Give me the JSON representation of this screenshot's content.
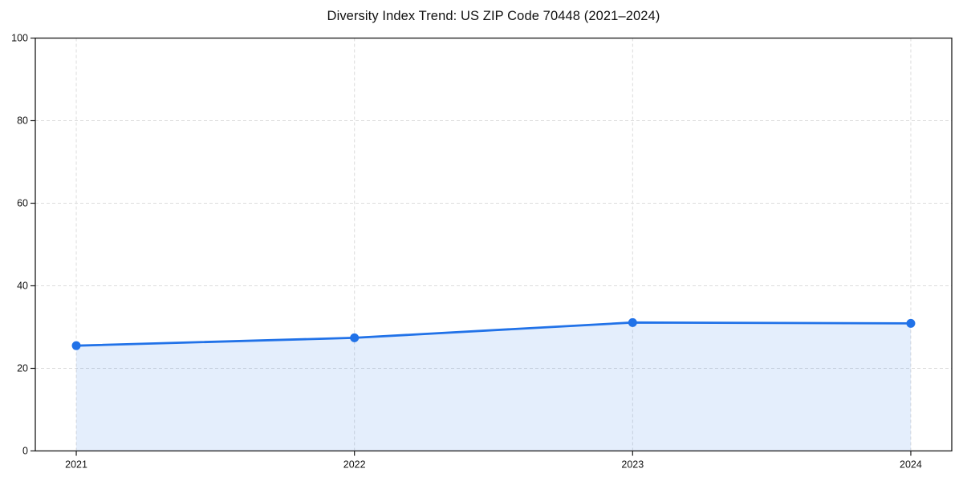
{
  "page": {
    "background": "#ffffff"
  },
  "chart_data": {
    "type": "area",
    "title": "Diversity Index Trend: US ZIP Code 70448 (2021–2024)",
    "x": [
      2021,
      2022,
      2023,
      2024
    ],
    "x_tick_labels": [
      "2021",
      "2022",
      "2023",
      "2024"
    ],
    "series": [
      {
        "name": "Diversity Index",
        "values": [
          25.5,
          27.4,
          31.1,
          30.9
        ]
      }
    ],
    "xlabel": "",
    "ylabel": "",
    "ylim": [
      0,
      100
    ],
    "yticks": [
      0,
      20,
      40,
      60,
      80,
      100
    ],
    "grid": true,
    "grid_style": "dashed",
    "legend_position": "none",
    "marker": "circle",
    "colors": {
      "line": "#2172e8",
      "marker": "#2172e8",
      "fill": "#2172e8",
      "fill_opacity": 0.12,
      "grid": "#dcdcdc",
      "axis": "#1a1a1a",
      "text": "#111111"
    }
  }
}
